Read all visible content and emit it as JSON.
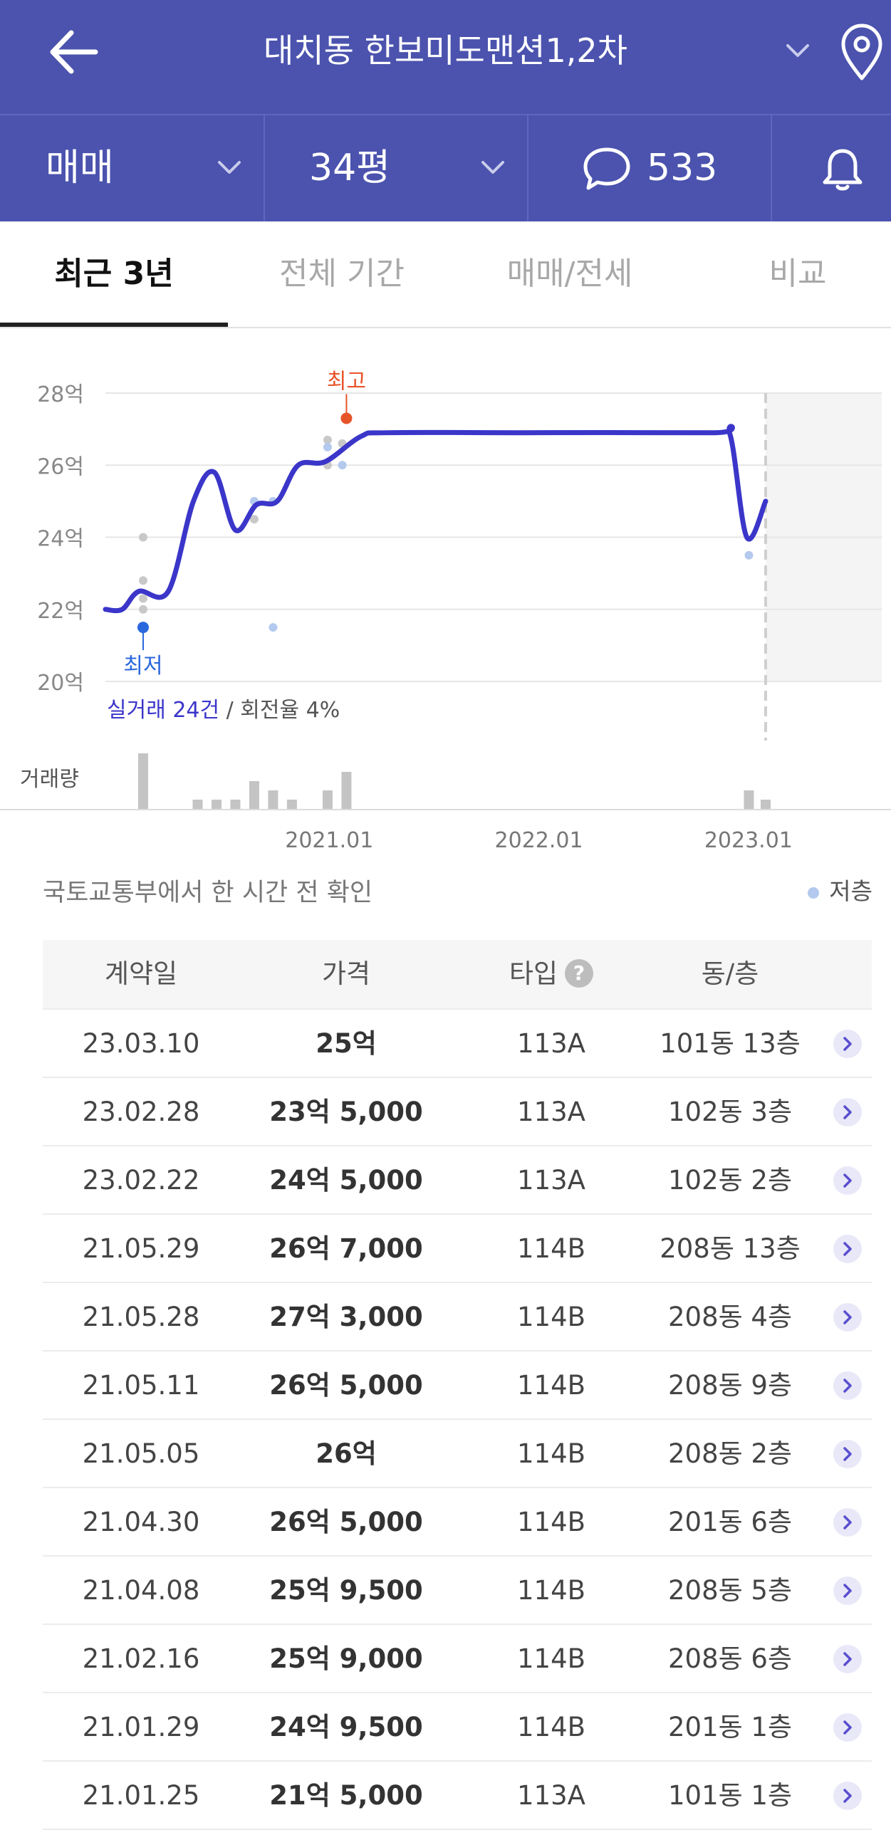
{
  "header": {
    "title": "대치동 한보미도맨션1,2차"
  },
  "subbar": {
    "deal_type": "매매",
    "size": "34평",
    "comment_count": "533"
  },
  "tabs": [
    {
      "label": "최근 3년",
      "active": true
    },
    {
      "label": "전체 기간",
      "active": false
    },
    {
      "label": "매매/전세",
      "active": false
    },
    {
      "label": "비교",
      "active": false
    }
  ],
  "chart_data": {
    "type": "line",
    "y_ticks": [
      "28억",
      "26억",
      "24억",
      "22억",
      "20억"
    ],
    "ylim": [
      20,
      28
    ],
    "x_ticks": [
      "2021.01",
      "2022.01",
      "2023.01"
    ],
    "max_label": "최고",
    "min_label": "최저",
    "summary_highlight": "실거래 24건",
    "summary_rest": " / 회전율 4%",
    "volume_label": "거래량",
    "series": [
      {
        "values": [
          [
            2020.0,
            22.0
          ],
          [
            2020.08,
            22.0
          ],
          [
            2020.16,
            22.5
          ],
          [
            2020.3,
            22.5
          ],
          [
            2020.42,
            25.0
          ],
          [
            2020.52,
            25.8
          ],
          [
            2020.62,
            24.2
          ],
          [
            2020.72,
            24.9
          ],
          [
            2020.82,
            25.0
          ],
          [
            2020.92,
            26.0
          ],
          [
            2021.05,
            26.1
          ],
          [
            2021.22,
            26.8
          ],
          [
            2021.35,
            26.9
          ],
          [
            2022.0,
            26.9
          ],
          [
            2022.9,
            26.9
          ],
          [
            2022.98,
            26.85
          ],
          [
            2023.06,
            24.0
          ],
          [
            2023.15,
            25.0
          ]
        ]
      }
    ],
    "high_point": [
      2021.15,
      27.3
    ],
    "low_point": [
      2020.18,
      21.5
    ],
    "scatter": [
      {
        "x": 2020.18,
        "y": 24.0,
        "low_floor": false
      },
      {
        "x": 2020.18,
        "y": 22.8,
        "low_floor": false
      },
      {
        "x": 2020.18,
        "y": 22.3,
        "low_floor": false
      },
      {
        "x": 2020.18,
        "y": 22.0,
        "low_floor": false
      },
      {
        "x": 2020.71,
        "y": 25.0,
        "low_floor": true
      },
      {
        "x": 2020.71,
        "y": 24.5,
        "low_floor": false
      },
      {
        "x": 2020.8,
        "y": 25.0,
        "low_floor": true
      },
      {
        "x": 2020.8,
        "y": 21.5,
        "low_floor": true
      },
      {
        "x": 2021.06,
        "y": 26.7,
        "low_floor": false
      },
      {
        "x": 2021.06,
        "y": 26.0,
        "low_floor": false
      },
      {
        "x": 2021.06,
        "y": 26.5,
        "low_floor": true
      },
      {
        "x": 2021.13,
        "y": 26.6,
        "low_floor": false
      },
      {
        "x": 2021.13,
        "y": 26.0,
        "low_floor": true
      },
      {
        "x": 2023.07,
        "y": 23.5,
        "low_floor": true
      }
    ],
    "volume": [
      {
        "x": 2020.18,
        "count": 6
      },
      {
        "x": 2020.44,
        "count": 1
      },
      {
        "x": 2020.53,
        "count": 1
      },
      {
        "x": 2020.62,
        "count": 1
      },
      {
        "x": 2020.71,
        "count": 3
      },
      {
        "x": 2020.8,
        "count": 2
      },
      {
        "x": 2020.89,
        "count": 1
      },
      {
        "x": 2021.06,
        "count": 2
      },
      {
        "x": 2021.15,
        "count": 4
      },
      {
        "x": 2023.07,
        "count": 2
      },
      {
        "x": 2023.15,
        "count": 1
      }
    ],
    "colors": {
      "line": "#3b36c9",
      "high": "#e8542a",
      "low": "#2a67dd",
      "dot": "#c8c8c8",
      "dot_low_floor": "#b3c9ee",
      "bar": "#c4c4c4"
    }
  },
  "source_note": "국토교통부에서 한 시간 전 확인",
  "legend": {
    "low_floor": "저층"
  },
  "table": {
    "headers": {
      "date": "계약일",
      "price": "가격",
      "type": "타입",
      "unit": "동/층"
    },
    "type_help": "?",
    "rows": [
      {
        "date": "23.03.10",
        "price": "25억",
        "type": "113A",
        "unit": "101동 13층"
      },
      {
        "date": "23.02.28",
        "price": "23억 5,000",
        "type": "113A",
        "unit": "102동 3층"
      },
      {
        "date": "23.02.22",
        "price": "24억 5,000",
        "type": "113A",
        "unit": "102동 2층"
      },
      {
        "date": "21.05.29",
        "price": "26억 7,000",
        "type": "114B",
        "unit": "208동 13층"
      },
      {
        "date": "21.05.28",
        "price": "27억 3,000",
        "type": "114B",
        "unit": "208동 4층"
      },
      {
        "date": "21.05.11",
        "price": "26억 5,000",
        "type": "114B",
        "unit": "208동 9층"
      },
      {
        "date": "21.05.05",
        "price": "26억",
        "type": "114B",
        "unit": "208동 2층"
      },
      {
        "date": "21.04.30",
        "price": "26억 5,000",
        "type": "114B",
        "unit": "201동 6층"
      },
      {
        "date": "21.04.08",
        "price": "25억 9,500",
        "type": "114B",
        "unit": "208동 5층"
      },
      {
        "date": "21.02.16",
        "price": "25억 9,000",
        "type": "114B",
        "unit": "208동 6층"
      },
      {
        "date": "21.01.29",
        "price": "24억 9,500",
        "type": "114B",
        "unit": "201동 1층"
      },
      {
        "date": "21.01.25",
        "price": "21억 5,000",
        "type": "113A",
        "unit": "101동 1층"
      }
    ]
  }
}
